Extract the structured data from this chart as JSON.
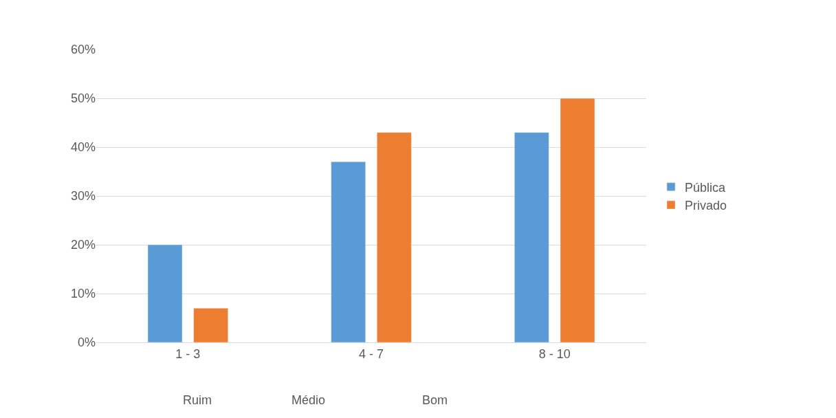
{
  "chart_data": {
    "type": "bar",
    "categories": [
      "1 - 3",
      "4 - 7",
      "8 - 10"
    ],
    "series": [
      {
        "name": "Pública",
        "color": "#5b9bd5",
        "values": [
          20,
          37,
          43
        ]
      },
      {
        "name": "Privado",
        "color": "#ed7d31",
        "values": [
          7,
          43,
          50
        ]
      }
    ],
    "ylim": [
      0,
      60
    ],
    "yticks": [
      {
        "value": 0,
        "label": "0%"
      },
      {
        "value": 10,
        "label": "10%"
      },
      {
        "value": 20,
        "label": "20%"
      },
      {
        "value": 30,
        "label": "30%"
      },
      {
        "value": 40,
        "label": "40%"
      },
      {
        "value": 50,
        "label": "50%"
      },
      {
        "value": 60,
        "label": "60%"
      }
    ],
    "annotations": [
      "Ruim",
      "Médio",
      "Bom"
    ],
    "grid": "y",
    "legend": "right"
  }
}
